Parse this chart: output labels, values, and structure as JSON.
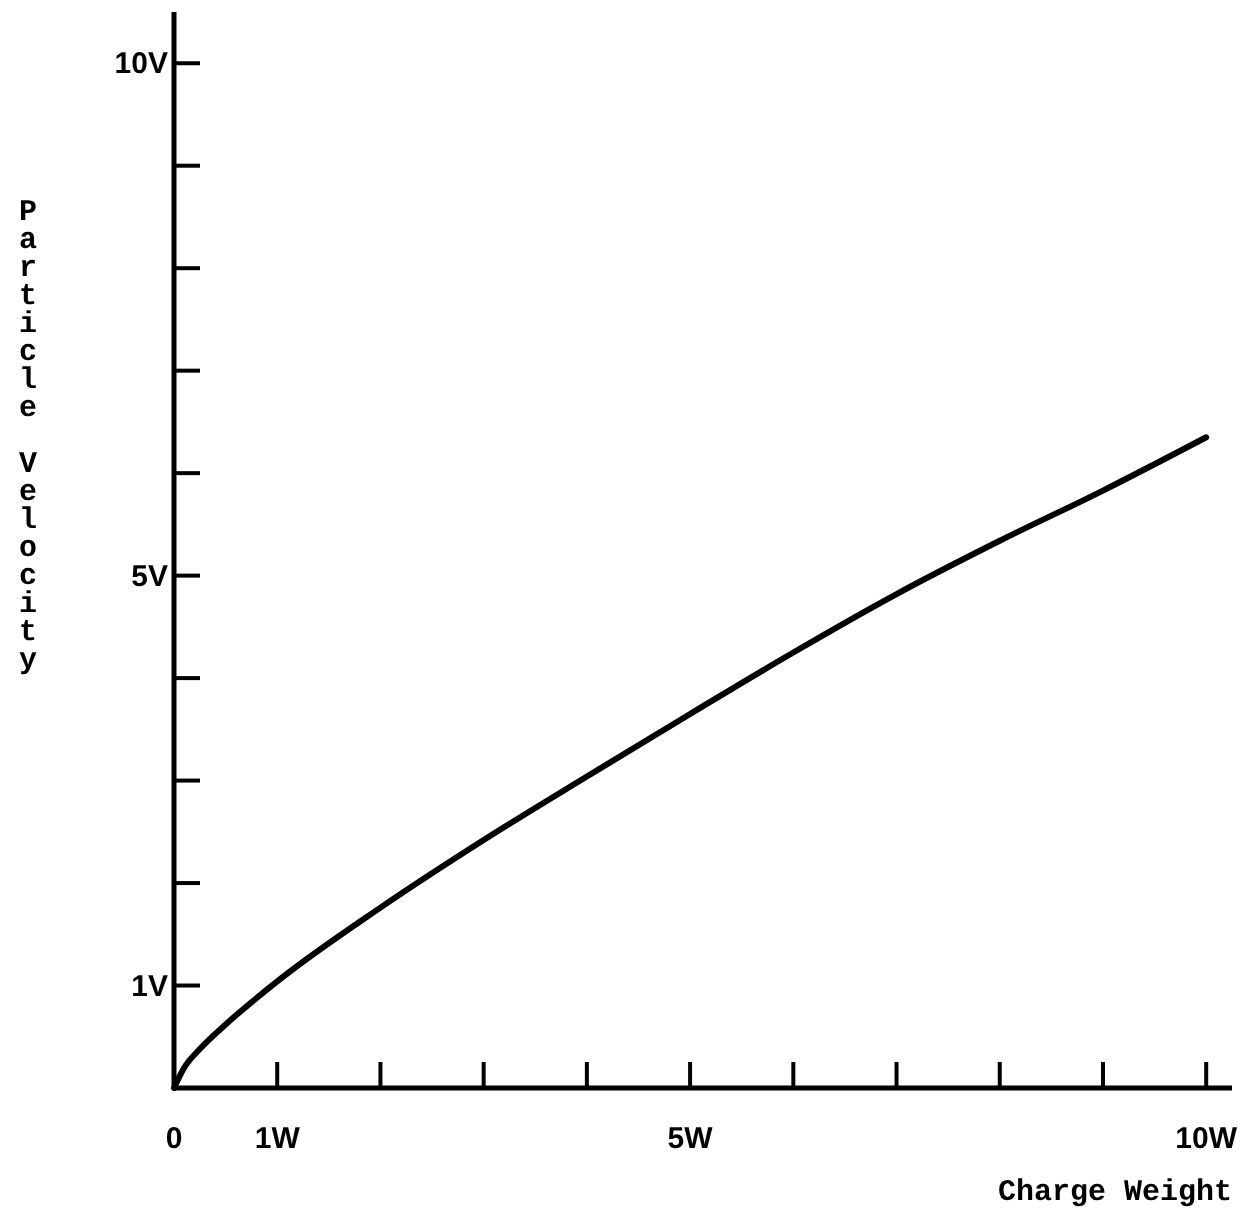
{
  "chart_data": {
    "type": "line",
    "xlabel": "Charge Weight",
    "ylabel": "Particle Velocity",
    "x": [
      0,
      0.1,
      0.25,
      0.5,
      1,
      2,
      3,
      4,
      5,
      6,
      7,
      8,
      9,
      10
    ],
    "series": [
      {
        "color": "#000000",
        "values": [
          0,
          0.2,
          0.38,
          0.62,
          1.04,
          1.76,
          2.42,
          3.04,
          3.65,
          4.25,
          4.82,
          5.34,
          5.83,
          6.35
        ]
      }
    ],
    "xlim": [
      0,
      10.25
    ],
    "ylim": [
      0,
      10.5
    ],
    "xticks": [
      0,
      {
        "value": 1,
        "label": "1W"
      },
      {
        "value": 2,
        "label": null
      },
      {
        "value": 3,
        "label": null
      },
      {
        "value": 4,
        "label": null
      },
      {
        "value": 5,
        "label": "5W"
      },
      {
        "value": 6,
        "label": null
      },
      {
        "value": 7,
        "label": null
      },
      {
        "value": 8,
        "label": null
      },
      {
        "value": 9,
        "label": null
      },
      {
        "value": 10,
        "label": "10W"
      }
    ],
    "yticks": [
      {
        "value": 1,
        "label": "1V"
      },
      {
        "value": 2,
        "label": null
      },
      {
        "value": 3,
        "label": null
      },
      {
        "value": 4,
        "label": null
      },
      {
        "value": 5,
        "label": "5V"
      },
      {
        "value": 6,
        "label": null
      },
      {
        "value": 7,
        "label": null
      },
      {
        "value": 8,
        "label": null
      },
      {
        "value": 9,
        "label": null
      },
      {
        "value": 10,
        "label": "10V"
      }
    ],
    "marker": "none",
    "line_style": "solid"
  }
}
